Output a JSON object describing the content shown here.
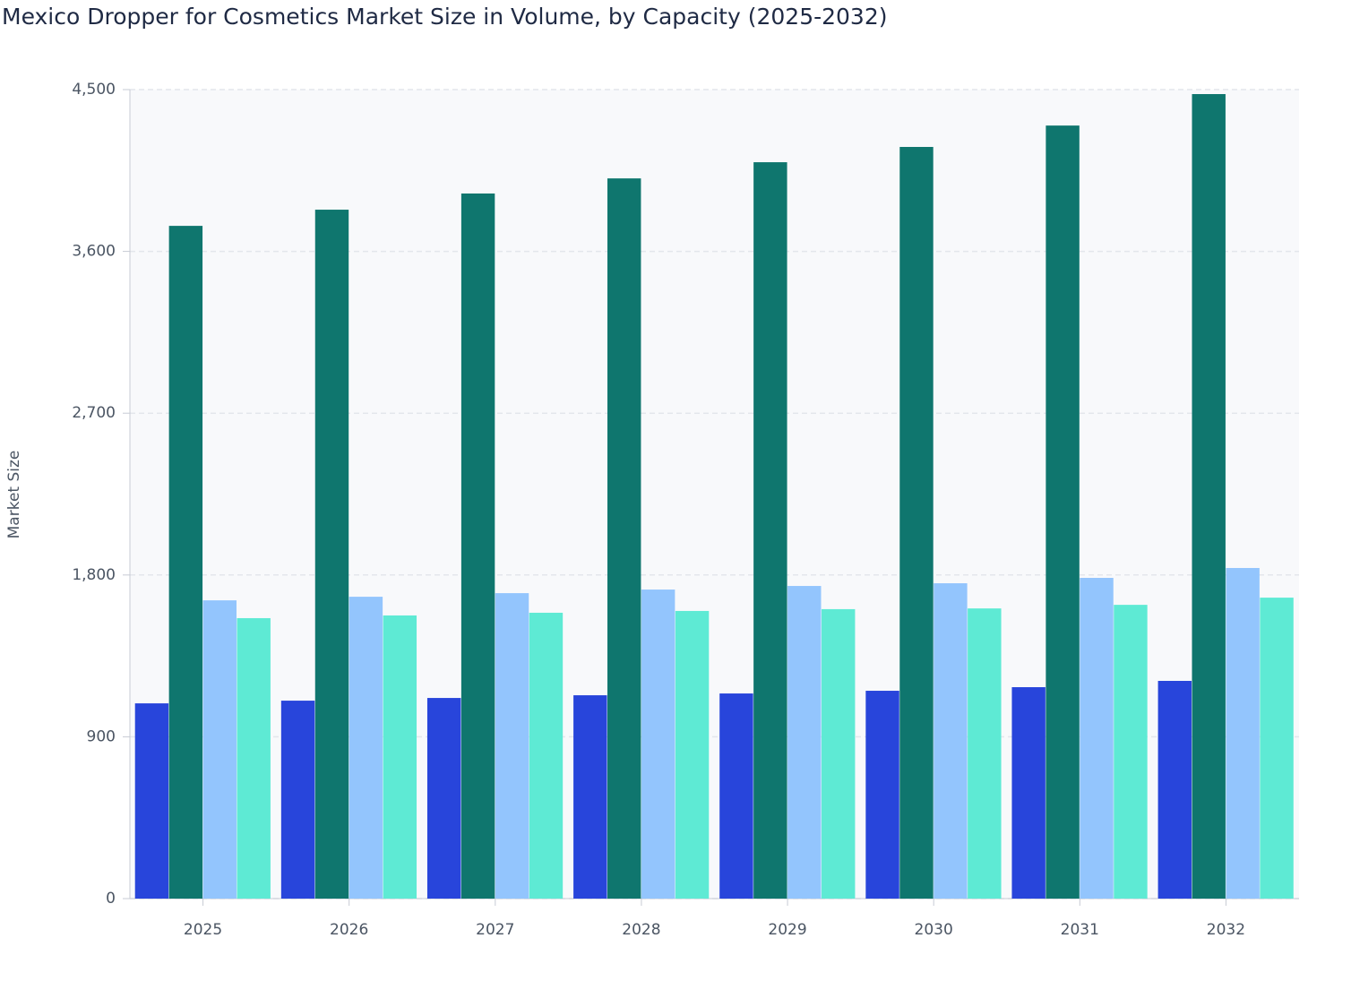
{
  "chart_data": {
    "type": "bar",
    "title": "Mexico Dropper for Cosmetics Market Size in Volume, by Capacity (2025-2032)",
    "y_label": "Market Size",
    "categories": [
      "2025",
      "2026",
      "2027",
      "2028",
      "2029",
      "2030",
      "2031",
      "2032"
    ],
    "series": [
      {
        "color": "#2845db",
        "values": [
          1086,
          1101,
          1116,
          1131,
          1141,
          1156,
          1176,
          1211
        ]
      },
      {
        "color": "#0f766e",
        "values": [
          3742,
          3832,
          3922,
          4006,
          4096,
          4181,
          4300,
          4475
        ]
      },
      {
        "color": "#93c5fd",
        "values": [
          1659,
          1679,
          1699,
          1719,
          1739,
          1754,
          1784,
          1839
        ]
      },
      {
        "color": "#5eead4",
        "values": [
          1560,
          1575,
          1590,
          1600,
          1610,
          1614,
          1634,
          1674
        ]
      }
    ],
    "ylim": [
      0,
      4500
    ],
    "yticks": [
      0,
      900,
      {
        "value": 1800,
        "label": "1,800"
      },
      {
        "value": 2700,
        "label": "2,700"
      },
      {
        "value": 3600,
        "label": "3,600"
      },
      {
        "value": 4500,
        "label": "4,500"
      }
    ],
    "grid": true
  }
}
